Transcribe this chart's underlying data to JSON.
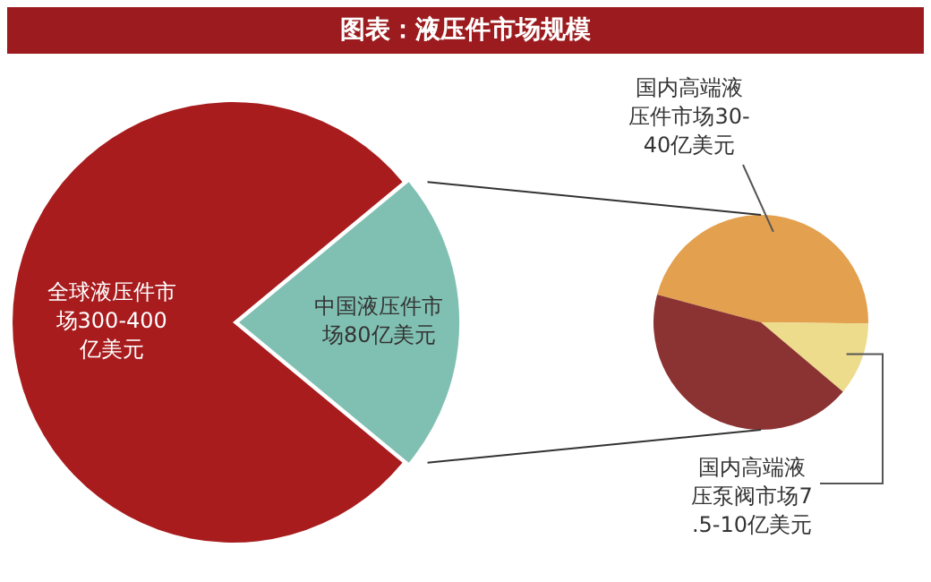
{
  "chart_data": [
    {
      "type": "pie",
      "title": "图表：液压件市场规模",
      "categories": [
        "全球液压件市场300-400亿美元",
        "中国液压件市场80亿美元"
      ],
      "values": [
        78,
        22
      ],
      "colors": [
        "#a81c1e",
        "#80c0b2"
      ]
    },
    {
      "type": "pie",
      "categories": [
        "国内高端液压件市场30-40亿美元",
        "国内高端液压泵阀市场7.5-10亿美元",
        null
      ],
      "values": [
        46,
        11,
        43
      ],
      "colors": [
        "#e3a04e",
        "#ecdc8c",
        "#8b3232"
      ]
    }
  ]
}
